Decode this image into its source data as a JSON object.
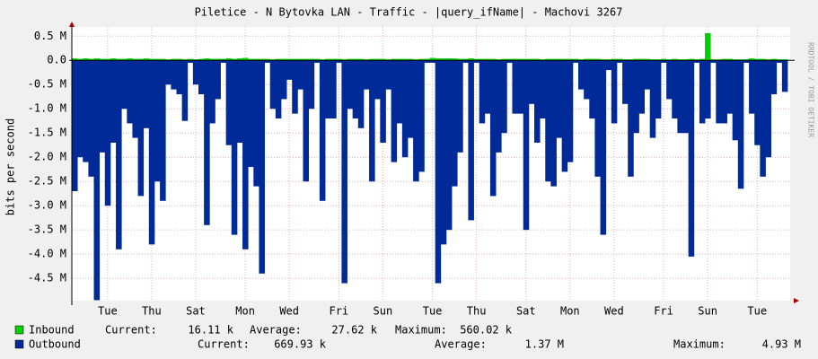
{
  "chart_data": {
    "type": "area",
    "title": "Piletice - N Bytovka LAN - Traffic - |query_ifName| - Machovi 3267",
    "y_label": "bits per second",
    "watermark": "RRDTOOL / TOBI OETIKER",
    "stat_labels": [
      "Current:",
      "Average:",
      "Maximum:"
    ],
    "ylim": [
      -4.96,
      0.69
    ],
    "yticks": [
      {
        "value": 0.5,
        "label": "0.5 M"
      },
      {
        "value": 0,
        "label": "0.0"
      },
      {
        "value": -0.5,
        "label": "-0.5 M"
      },
      {
        "value": -1,
        "label": "-1.0 M"
      },
      {
        "value": -1.5,
        "label": "-1.5 M"
      },
      {
        "value": -2,
        "label": "-2.0 M"
      },
      {
        "value": -2.5,
        "label": "-2.5 M"
      },
      {
        "value": -3,
        "label": "-3.0 M"
      },
      {
        "value": -3.5,
        "label": "-3.5 M"
      },
      {
        "value": -4,
        "label": "-4.0 M"
      },
      {
        "value": -4.5,
        "label": "-4.5 M"
      }
    ],
    "grid": true,
    "categories": [
      null,
      null,
      null,
      null,
      null,
      null,
      "Tue",
      null,
      null,
      null,
      null,
      null,
      null,
      null,
      "Thu",
      null,
      null,
      null,
      null,
      null,
      null,
      null,
      "Sat",
      null,
      null,
      null,
      null,
      null,
      null,
      null,
      null,
      "Mon",
      null,
      null,
      null,
      null,
      null,
      null,
      null,
      "Wed",
      null,
      null,
      null,
      null,
      null,
      null,
      null,
      null,
      "Fri",
      null,
      null,
      null,
      null,
      null,
      null,
      null,
      "Sun",
      null,
      null,
      null,
      null,
      null,
      null,
      null,
      null,
      "Tue",
      null,
      null,
      null,
      null,
      null,
      null,
      null,
      "Thu",
      null,
      null,
      null,
      null,
      null,
      null,
      null,
      null,
      "Sat",
      null,
      null,
      null,
      null,
      null,
      null,
      null,
      "Mon",
      null,
      null,
      null,
      null,
      null,
      null,
      null,
      "Wed",
      null,
      null,
      null,
      null,
      null,
      null,
      null,
      null,
      "Fri",
      null,
      null,
      null,
      null,
      null,
      null,
      null,
      "Sun",
      null,
      null,
      null,
      null,
      null,
      null,
      null,
      null,
      "Tue",
      null,
      null,
      null,
      null,
      null
    ],
    "series": [
      {
        "name": "Inbound",
        "color": "#00cf00",
        "current": "16.11 k",
        "average": "27.62 k",
        "maximum": "560.02 k",
        "values": [
          0.04,
          0.03,
          0.04,
          0.03,
          0.04,
          0.03,
          0.03,
          0.04,
          0.03,
          0.03,
          0.04,
          0.03,
          0.03,
          0.04,
          0.03,
          0.03,
          0.03,
          0.02,
          0.03,
          0.03,
          0.02,
          0.03,
          0.02,
          0.03,
          0.04,
          0.03,
          0.03,
          0.03,
          0.04,
          0.03,
          0.04,
          0.05,
          0.03,
          0.03,
          0.03,
          0.03,
          0.02,
          0.03,
          0.03,
          0.03,
          0.03,
          0.03,
          0.03,
          0.03,
          0.03,
          0.02,
          0.03,
          0.03,
          0.03,
          0.02,
          0.03,
          0.03,
          0.03,
          0.02,
          0.03,
          0.03,
          0.03,
          0.02,
          0.03,
          0.03,
          0.03,
          0.03,
          0.02,
          0.03,
          0.03,
          0.05,
          0.04,
          0.04,
          0.04,
          0.04,
          0.03,
          0.03,
          0.04,
          0.03,
          0.03,
          0.03,
          0.03,
          0.02,
          0.03,
          0.03,
          0.03,
          0.03,
          0.03,
          0.03,
          0.03,
          0.02,
          0.03,
          0.03,
          0.03,
          0.03,
          0.03,
          0.03,
          0.02,
          0.03,
          0.03,
          0.03,
          0.02,
          0.02,
          0.03,
          0.03,
          0.02,
          0.02,
          0.03,
          0.03,
          0.03,
          0.02,
          0.02,
          0.03,
          0.02,
          0.03,
          0.02,
          0.02,
          0.03,
          0.02,
          0.03,
          0.56,
          0.02,
          0.02,
          0.03,
          0.03,
          0.02,
          0.02,
          0.02,
          0.04,
          0.03,
          0.03,
          0.02,
          0.03,
          0.02,
          0.02
        ]
      },
      {
        "name": "Outbound",
        "color": "#002a97",
        "current": "669.93 k",
        "average": "1.37 M",
        "maximum": "4.93 M",
        "values": [
          -2.7,
          -2.0,
          -2.1,
          -2.4,
          -4.95,
          -1.9,
          -3.0,
          -1.7,
          -3.9,
          -1.0,
          -1.3,
          -1.6,
          -2.8,
          -1.4,
          -3.8,
          -2.5,
          -2.9,
          -0.5,
          -0.6,
          -0.7,
          -1.25,
          -0.05,
          -0.5,
          -0.7,
          -3.4,
          -1.3,
          -0.8,
          -0.05,
          -1.75,
          -3.6,
          -1.7,
          -3.9,
          -2.2,
          -2.6,
          -4.4,
          -0.05,
          -1.0,
          -1.2,
          -0.8,
          -0.4,
          -1.1,
          -0.6,
          -2.5,
          -1.0,
          -0.05,
          -2.9,
          -1.2,
          -1.2,
          -0.05,
          -4.6,
          -1.0,
          -1.2,
          -1.4,
          -0.6,
          -2.5,
          -0.8,
          -1.7,
          -0.6,
          -2.1,
          -1.3,
          -2.0,
          -1.6,
          -2.5,
          -2.3,
          -0.05,
          -0.05,
          -4.6,
          -3.8,
          -3.5,
          -2.6,
          -1.9,
          -0.05,
          -3.3,
          -0.05,
          -1.3,
          -1.1,
          -2.8,
          -1.9,
          -1.5,
          -0.05,
          -1.1,
          -1.1,
          -3.5,
          -0.9,
          -1.7,
          -1.2,
          -2.5,
          -2.6,
          -1.6,
          -2.3,
          -2.1,
          -0.05,
          -0.6,
          -0.8,
          -1.2,
          -2.4,
          -3.6,
          -0.2,
          -1.3,
          -0.05,
          -0.9,
          -2.4,
          -1.5,
          -1.1,
          -0.6,
          -1.6,
          -1.2,
          -0.05,
          -0.8,
          -1.2,
          -1.5,
          -1.5,
          -4.05,
          -0.05,
          -1.3,
          -1.2,
          -0.05,
          -1.3,
          -1.3,
          -1.1,
          -1.65,
          -2.65,
          -0.05,
          -1.1,
          -1.75,
          -2.4,
          -2.0,
          -0.7,
          -0.05,
          -0.65
        ]
      }
    ]
  }
}
